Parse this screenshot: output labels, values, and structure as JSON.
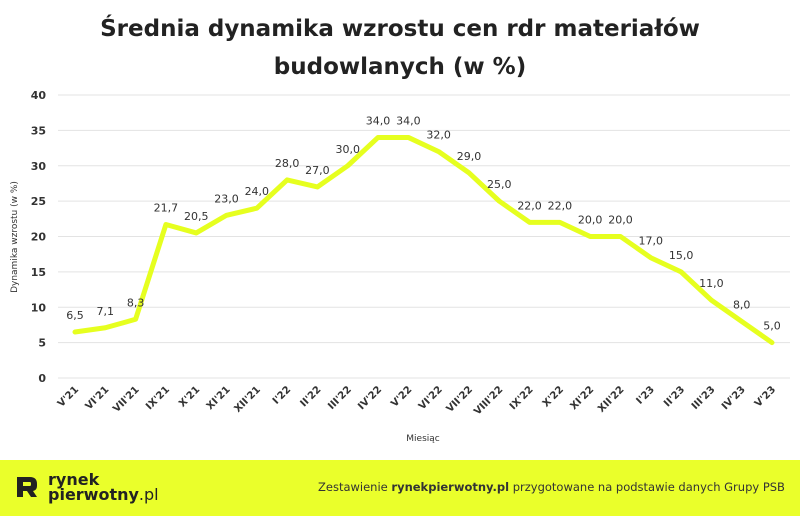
{
  "chart_data": {
    "type": "line",
    "title_line1": "Średnia dynamika wzrostu cen rdr materiałów",
    "title_line2": "budowlanych (w %)",
    "xlabel": "Miesiąc",
    "ylabel": "Dynamika wzrostu (w %)",
    "ylim": [
      0,
      40
    ],
    "yticks": [
      "0",
      "5",
      "10",
      "15",
      "20",
      "25",
      "30",
      "35",
      "40"
    ],
    "categories": [
      "V'21",
      "VI'21",
      "VII'21",
      "IX'21",
      "X'21",
      "XI'21",
      "XII'21",
      "I'22",
      "II'22",
      "III'22",
      "IV'22",
      "V'22",
      "VI'22",
      "VII'22",
      "VIII'22",
      "IX'22",
      "X'22",
      "XI'22",
      "XII'22",
      "I'23",
      "II'23",
      "III'23",
      "IV'23",
      "V'23"
    ],
    "values": [
      6.5,
      7.1,
      8.3,
      21.7,
      20.5,
      23.0,
      24.0,
      28.0,
      27.0,
      30.0,
      34.0,
      34.0,
      32.0,
      29.0,
      25.0,
      22.0,
      22.0,
      20.0,
      20.0,
      17.0,
      15.0,
      11.0,
      8.0,
      5.0
    ],
    "value_labels": [
      "6,5",
      "7,1",
      "8,3",
      "21,7",
      "20,5",
      "23,0",
      "24,0",
      "28,0",
      "27,0",
      "30,0",
      "34,0",
      "34,0",
      "32,0",
      "29,0",
      "25,0",
      "22,0",
      "22,0",
      "20,0",
      "20,0",
      "17,0",
      "15,0",
      "11,0",
      "8,0",
      "5,0"
    ],
    "grid": true,
    "line_color": "#e6ff1f"
  },
  "footer": {
    "logo_line1": "rynek",
    "logo_line2_bold": "pierwotny",
    "logo_line2_light": ".pl",
    "credit_prefix": "Zestawienie ",
    "credit_bold": "rynekpierwotny.pl",
    "credit_suffix": " przygotowane na podstawie danych Grupy PSB",
    "background": "#eaff2b"
  }
}
